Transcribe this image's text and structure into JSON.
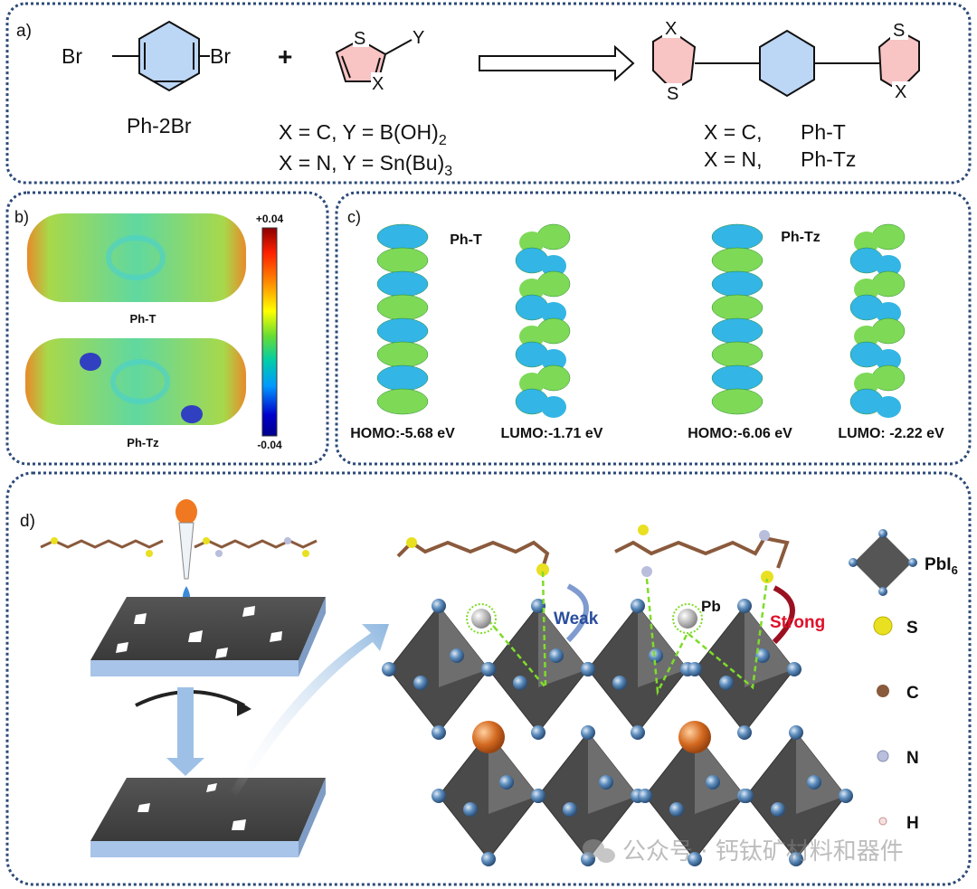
{
  "panel_a": {
    "label": "a)",
    "reactant1": {
      "br_left": "Br",
      "br_right": "Br",
      "name": "Ph-2Br"
    },
    "plus": "+",
    "reactant2": {
      "s": "S",
      "y": "Y",
      "x": "X"
    },
    "conditions": [
      {
        "text": "X = C, Y = B(OH)",
        "sub": "2"
      },
      {
        "text": "X = N, Y = Sn(Bu)",
        "sub": "3"
      }
    ],
    "product": {
      "x_top": "X",
      "s_bottom": "S",
      "s_top": "S",
      "x_bottom": "X"
    },
    "product_labels": [
      {
        "cond": "X = C,",
        "name": "Ph-T"
      },
      {
        "cond": "X = N,",
        "name": "Ph-Tz"
      }
    ]
  },
  "panel_b": {
    "label": "b)",
    "molecules": [
      "Ph-T",
      "Ph-Tz"
    ],
    "colorbar": {
      "max": "+0.04",
      "min": "-0.04",
      "colors": [
        "#8b0000",
        "#ff2000",
        "#ff9900",
        "#ffff00",
        "#66dd33",
        "#00ccaa",
        "#0099ff",
        "#0000cc",
        "#00008b"
      ]
    }
  },
  "panel_c": {
    "label": "c)",
    "groups": [
      "Ph-T",
      "Ph-Tz"
    ],
    "orbitals": [
      {
        "label": "HOMO:-5.68 eV"
      },
      {
        "label": "LUMO:-1.71 eV"
      },
      {
        "label": "HOMO:-6.06 eV"
      },
      {
        "label": "LUMO: -2.22 eV"
      }
    ],
    "colors": {
      "positive": "#7ed957",
      "negative": "#33b5e5"
    }
  },
  "panel_d": {
    "label": "d)",
    "annotations": {
      "weak": "Weak",
      "strong": "Strong",
      "pb": "Pb"
    },
    "colors": {
      "weak": "#2a4d9c",
      "strong": "#e0102a",
      "bond": "#7fdc2a"
    },
    "legend": [
      {
        "symbol": "PbI",
        "sub": "6",
        "icon": "octahedron-icon"
      },
      {
        "symbol": "S",
        "color": "#e8e020",
        "icon": "sulfur-atom-icon"
      },
      {
        "symbol": "C",
        "color": "#8a5a3c",
        "icon": "carbon-atom-icon"
      },
      {
        "symbol": "N",
        "color": "#b8bedc",
        "icon": "nitrogen-atom-icon"
      },
      {
        "symbol": "H",
        "color": "#f0d0d0",
        "icon": "hydrogen-atom-icon"
      }
    ]
  },
  "watermark": {
    "text": "公众号 · 钙钛矿材料和器件"
  }
}
